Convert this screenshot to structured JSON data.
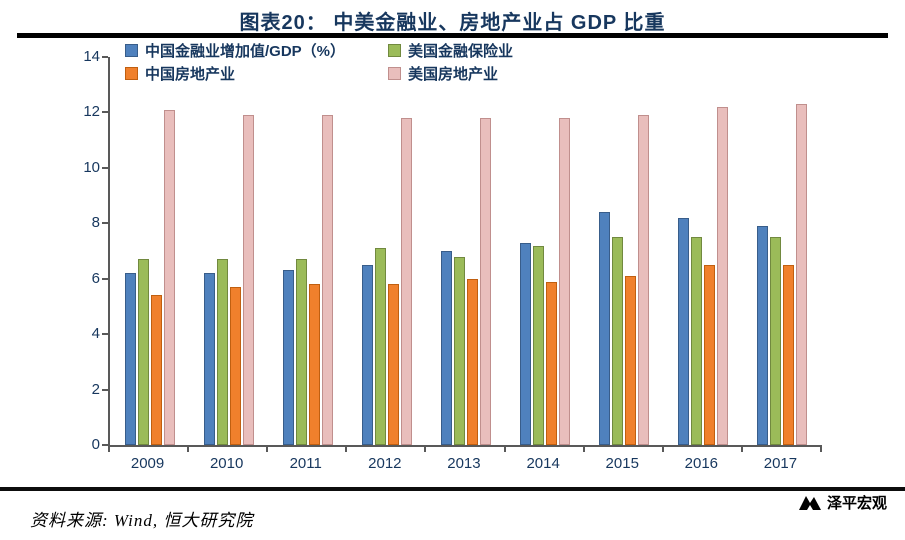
{
  "header": {
    "title": "图表20： 中美金融业、房地产业占 GDP 比重"
  },
  "footer": {
    "source": "资料来源: Wind, 恒大研究院",
    "brand": "泽平宏观"
  },
  "colors": {
    "title_text": "#17375e",
    "axis_text": "#17375e",
    "rule": "#000000"
  },
  "chart_data": {
    "type": "bar",
    "title": "图表20： 中美金融业、房地产业占 GDP 比重",
    "categories": [
      "2009",
      "2010",
      "2011",
      "2012",
      "2013",
      "2014",
      "2015",
      "2016",
      "2017"
    ],
    "series": [
      {
        "name": "中国金融业增加值/GDP（%）",
        "color": "#4f81bd",
        "border": "#385d8a",
        "values": [
          6.2,
          6.2,
          6.3,
          6.5,
          7.0,
          7.3,
          8.4,
          8.2,
          7.9
        ]
      },
      {
        "name": "美国金融保险业",
        "color": "#9bbb59",
        "border": "#71893f",
        "values": [
          6.7,
          6.7,
          6.7,
          7.1,
          6.8,
          7.2,
          7.5,
          7.5,
          7.5
        ]
      },
      {
        "name": "中国房地产业",
        "color": "#f0802c",
        "border": "#c05f10",
        "values": [
          5.4,
          5.7,
          5.8,
          5.8,
          6.0,
          5.9,
          6.1,
          6.5,
          6.5
        ]
      },
      {
        "name": "美国房地产业",
        "color": "#e9bebc",
        "border": "#c08f8d",
        "values": [
          12.1,
          11.9,
          11.9,
          11.8,
          11.8,
          11.8,
          11.9,
          12.2,
          12.3
        ]
      }
    ],
    "xlabel": "",
    "ylabel": "",
    "ylim": [
      0,
      14
    ],
    "yticks": [
      0,
      2,
      4,
      6,
      8,
      10,
      12,
      14
    ],
    "legend_position": "top",
    "grid": false
  }
}
